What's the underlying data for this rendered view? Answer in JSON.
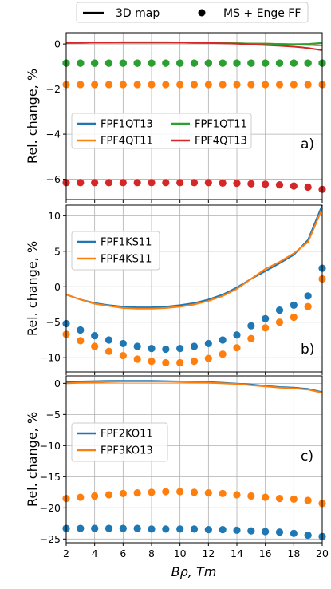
{
  "top_legend": {
    "line_label": "3D map",
    "dots_label": "MS + Enge FF"
  },
  "x_axis": {
    "label": "Bρ, Tm",
    "ticks": [
      2,
      4,
      6,
      8,
      10,
      12,
      14,
      16,
      18,
      20
    ],
    "range": [
      2,
      20
    ]
  },
  "colors": {
    "blue": "#1f77b4",
    "orange": "#ff7f0e",
    "green": "#2ca02c",
    "red": "#d62728",
    "grid": "#b0b0b0"
  },
  "chart_data": [
    {
      "type": "line",
      "panel_tag": "a)",
      "ylabel": "Rel. change, %",
      "ylim": [
        -6.9,
        0.5
      ],
      "yticks": [
        0,
        -2,
        -4,
        -6
      ],
      "grid": true,
      "legend_placement": "center-left",
      "legend_columns": 2,
      "x": [
        2,
        3,
        4,
        5,
        6,
        7,
        8,
        9,
        10,
        11,
        12,
        13,
        14,
        15,
        16,
        17,
        18,
        19,
        20
      ],
      "series": [
        {
          "name": "FPF1QT13",
          "color": "#1f77b4",
          "line_kind": "3D map",
          "line": [
            0.05,
            0.05,
            0.06,
            0.06,
            0.06,
            0.06,
            0.06,
            0.06,
            0.06,
            0.05,
            0.05,
            0.04,
            0.03,
            0.02,
            0.01,
            0.0,
            -0.02,
            -0.04,
            -0.07
          ],
          "dots": [
            -0.85,
            -0.85,
            -0.85,
            -0.85,
            -0.85,
            -0.85,
            -0.85,
            -0.85,
            -0.85,
            -0.85,
            -0.85,
            -0.85,
            -0.85,
            -0.85,
            -0.85,
            -0.85,
            -0.85,
            -0.85,
            -0.85
          ]
        },
        {
          "name": "FPF4QT11",
          "color": "#ff7f0e",
          "line": [
            0.05,
            0.05,
            0.06,
            0.06,
            0.06,
            0.06,
            0.06,
            0.06,
            0.06,
            0.05,
            0.05,
            0.04,
            0.03,
            0.02,
            0.01,
            0.0,
            -0.02,
            -0.04,
            -0.07
          ],
          "dots": [
            -1.8,
            -1.8,
            -1.8,
            -1.8,
            -1.8,
            -1.8,
            -1.8,
            -1.8,
            -1.8,
            -1.8,
            -1.8,
            -1.8,
            -1.8,
            -1.8,
            -1.8,
            -1.8,
            -1.8,
            -1.8,
            -1.8
          ]
        },
        {
          "name": "FPF1QT11",
          "color": "#2ca02c",
          "line": [
            0.05,
            0.05,
            0.06,
            0.06,
            0.06,
            0.06,
            0.06,
            0.06,
            0.06,
            0.05,
            0.05,
            0.04,
            0.03,
            0.02,
            0.01,
            0.0,
            -0.01,
            0.0,
            0.05
          ],
          "dots": [
            -0.85,
            -0.85,
            -0.85,
            -0.85,
            -0.85,
            -0.85,
            -0.85,
            -0.85,
            -0.85,
            -0.85,
            -0.85,
            -0.85,
            -0.85,
            -0.85,
            -0.85,
            -0.85,
            -0.85,
            -0.85,
            -0.85
          ]
        },
        {
          "name": "FPF4QT13",
          "color": "#d62728",
          "line": [
            0.05,
            0.06,
            0.07,
            0.07,
            0.08,
            0.08,
            0.08,
            0.08,
            0.07,
            0.06,
            0.05,
            0.03,
            0.01,
            -0.02,
            -0.05,
            -0.08,
            -0.12,
            -0.18,
            -0.28
          ],
          "dots": [
            -6.15,
            -6.15,
            -6.15,
            -6.15,
            -6.15,
            -6.15,
            -6.15,
            -6.15,
            -6.15,
            -6.15,
            -6.15,
            -6.17,
            -6.18,
            -6.2,
            -6.22,
            -6.25,
            -6.3,
            -6.35,
            -6.45
          ]
        }
      ]
    },
    {
      "type": "line",
      "panel_tag": "b)",
      "ylabel": "Rel. change, %",
      "ylim": [
        -12,
        11.5
      ],
      "yticks": [
        10,
        5,
        0,
        -5,
        -10
      ],
      "grid": true,
      "legend_placement": "upper-left",
      "legend_columns": 1,
      "x": [
        2,
        3,
        4,
        5,
        6,
        7,
        8,
        9,
        10,
        11,
        12,
        13,
        14,
        15,
        16,
        17,
        18,
        19,
        20
      ],
      "series": [
        {
          "name": "FPF1KS11",
          "color": "#1f77b4",
          "line": [
            -1.1,
            -1.8,
            -2.3,
            -2.6,
            -2.8,
            -2.9,
            -2.9,
            -2.8,
            -2.6,
            -2.3,
            -1.8,
            -1.1,
            -0.1,
            1.1,
            2.2,
            3.3,
            4.5,
            6.6,
            11.5
          ],
          "dots": [
            -5.2,
            -6.1,
            -6.9,
            -7.5,
            -8.0,
            -8.4,
            -8.7,
            -8.8,
            -8.7,
            -8.4,
            -8.0,
            -7.5,
            -6.8,
            -5.5,
            -4.5,
            -3.3,
            -2.6,
            -1.3,
            2.6
          ]
        },
        {
          "name": "FPF4KS11",
          "color": "#ff7f0e",
          "line": [
            -1.1,
            -1.8,
            -2.4,
            -2.7,
            -3.0,
            -3.1,
            -3.1,
            -3.0,
            -2.8,
            -2.5,
            -2.0,
            -1.3,
            -0.3,
            1.1,
            2.5,
            3.5,
            4.7,
            6.3,
            11.0
          ],
          "dots": [
            -6.7,
            -7.6,
            -8.4,
            -9.1,
            -9.7,
            -10.2,
            -10.5,
            -10.7,
            -10.7,
            -10.5,
            -10.1,
            -9.5,
            -8.6,
            -7.3,
            -5.8,
            -5.0,
            -4.3,
            -2.8,
            1.1
          ]
        }
      ]
    },
    {
      "type": "line",
      "panel_tag": "c)",
      "ylabel": "Rel. change, %",
      "ylim": [
        -25.6,
        1.2
      ],
      "yticks": [
        0,
        -5,
        -10,
        -15,
        -20,
        -25
      ],
      "grid": true,
      "legend_placement": "upper-left",
      "legend_columns": 1,
      "x": [
        2,
        3,
        4,
        5,
        6,
        7,
        8,
        9,
        10,
        11,
        12,
        13,
        14,
        15,
        16,
        17,
        18,
        19,
        20
      ],
      "series": [
        {
          "name": "FPF2KO11",
          "color": "#1f77b4",
          "line": [
            0.2,
            0.3,
            0.35,
            0.4,
            0.4,
            0.4,
            0.4,
            0.35,
            0.3,
            0.25,
            0.2,
            0.1,
            -0.05,
            -0.2,
            -0.4,
            -0.6,
            -0.7,
            -0.9,
            -1.4
          ],
          "dots": [
            -23.3,
            -23.3,
            -23.3,
            -23.3,
            -23.3,
            -23.3,
            -23.4,
            -23.4,
            -23.4,
            -23.4,
            -23.5,
            -23.5,
            -23.6,
            -23.7,
            -23.8,
            -23.9,
            -24.1,
            -24.4,
            -24.6
          ]
        },
        {
          "name": "FPF3KO13",
          "color": "#ff7f0e",
          "line": [
            0.0,
            0.1,
            0.15,
            0.2,
            0.25,
            0.25,
            0.25,
            0.25,
            0.2,
            0.15,
            0.1,
            0.0,
            -0.1,
            -0.3,
            -0.5,
            -0.7,
            -0.8,
            -1.0,
            -1.5
          ],
          "dots": [
            -18.5,
            -18.3,
            -18.1,
            -17.9,
            -17.7,
            -17.6,
            -17.5,
            -17.4,
            -17.4,
            -17.5,
            -17.6,
            -17.7,
            -17.9,
            -18.1,
            -18.3,
            -18.5,
            -18.6,
            -18.8,
            -19.3
          ]
        }
      ]
    }
  ]
}
